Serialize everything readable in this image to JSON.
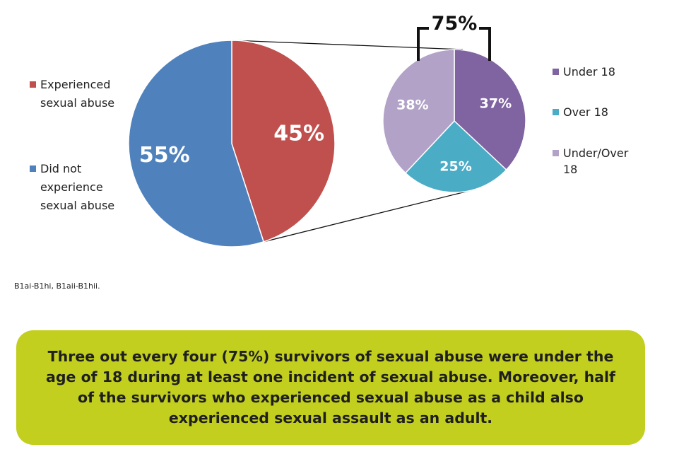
{
  "chart_data": [
    {
      "type": "pie",
      "slices": [
        {
          "label": "Experienced sexual abuse",
          "value": 45,
          "display": "45%",
          "color": "#c0504d"
        },
        {
          "label": "Did not experience sexual abuse",
          "value": 55,
          "display": "55%",
          "color": "#4f81bd"
        }
      ],
      "legend_placement": "left"
    },
    {
      "type": "pie",
      "slices": [
        {
          "label": "Under 18",
          "value": 37,
          "display": "37%",
          "color": "#8064a2"
        },
        {
          "label": "Over 18",
          "value": 25,
          "display": "25%",
          "color": "#4bacc6"
        },
        {
          "label": "Under/Over 18",
          "value": 38,
          "display": "38%",
          "color": "#b2a2c7"
        }
      ],
      "legend_placement": "right",
      "bracket_label": "75%"
    }
  ],
  "legend_left": {
    "items": [
      {
        "lines": [
          "Experienced",
          "sexual abuse"
        ],
        "color": "#c0504d"
      },
      {
        "lines": [
          "Did not",
          "experience",
          "sexual abuse"
        ],
        "color": "#4f81bd"
      }
    ]
  },
  "legend_right": {
    "items": [
      {
        "lines": [
          "Under 18"
        ],
        "color": "#8064a2"
      },
      {
        "lines": [
          "Over 18"
        ],
        "color": "#4bacc6"
      },
      {
        "lines": [
          "Under/Over",
          "18"
        ],
        "color": "#b2a2c7"
      }
    ]
  },
  "note": "B1ai-B1hi, B1aii-B1hii.",
  "callout": {
    "text": "Three out every four (75%) survivors of sexual abuse were under the age of 18 during at least one incident of sexual abuse.  Moreover, half of the survivors who experienced sexual abuse as a child also experienced sexual assault as an adult.",
    "color": "#c2cf1e"
  }
}
